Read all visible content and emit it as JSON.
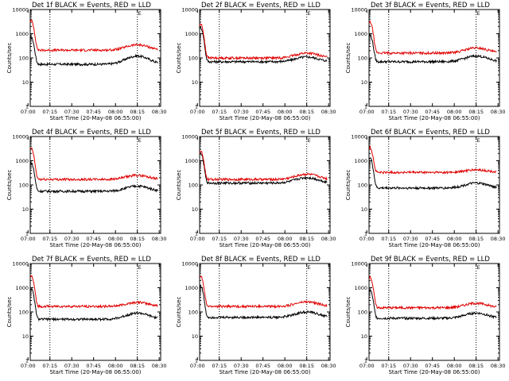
{
  "chart_data": [
    {
      "type": "line",
      "title": "Det 1f BLACK = Events, RED = LLD",
      "xlabel": "Start Time (20-May-08 06:55:00)",
      "ylabel": "Counts/sec",
      "ylim": [
        1,
        10000
      ],
      "yscale": "log",
      "x_ticks": [
        "07:00",
        "07:15",
        "07:30",
        "07:45",
        "08:00",
        "08:15",
        "08:30"
      ],
      "y_ticks": [
        "1",
        "10",
        "100",
        "1000",
        "10000"
      ],
      "marker_label": "E",
      "series": [
        {
          "name": "Events",
          "peak": 700,
          "base": 55,
          "end_bump": 120
        },
        {
          "name": "LLD",
          "peak": 3500,
          "base": 210,
          "end_bump": 350
        }
      ]
    },
    {
      "type": "line",
      "title": "Det 2f BLACK = Events, RED = LLD",
      "xlabel": "Start Time (20-May-08 06:55:00)",
      "ylabel": "Counts/sec",
      "ylim": [
        1,
        10000
      ],
      "yscale": "log",
      "x_ticks": [
        "07:00",
        "07:15",
        "07:30",
        "07:45",
        "08:00",
        "08:15",
        "08:30"
      ],
      "y_ticks": [
        "1",
        "10",
        "100",
        "1000",
        "10000"
      ],
      "marker_label": "E",
      "series": [
        {
          "name": "Events",
          "peak": 1800,
          "base": 70,
          "end_bump": 110
        },
        {
          "name": "LLD",
          "peak": 2500,
          "base": 100,
          "end_bump": 160
        }
      ]
    },
    {
      "type": "line",
      "title": "Det 3f BLACK = Events, RED = LLD",
      "xlabel": "Start Time (20-May-08 06:55:00)",
      "ylabel": "Counts/sec",
      "ylim": [
        1,
        10000
      ],
      "yscale": "log",
      "x_ticks": [
        "07:00",
        "07:15",
        "07:30",
        "07:45",
        "08:00",
        "08:15",
        "08:30"
      ],
      "y_ticks": [
        "1",
        "10",
        "100",
        "1000",
        "10000"
      ],
      "marker_label": "E",
      "series": [
        {
          "name": "Events",
          "peak": 900,
          "base": 70,
          "end_bump": 120
        },
        {
          "name": "LLD",
          "peak": 3000,
          "base": 160,
          "end_bump": 260
        }
      ]
    },
    {
      "type": "line",
      "title": "Det 4f BLACK = Events, RED = LLD",
      "xlabel": "Start Time (20-May-08 06:55:00)",
      "ylabel": "Counts/sec",
      "ylim": [
        1,
        10000
      ],
      "yscale": "log",
      "x_ticks": [
        "07:00",
        "07:15",
        "07:30",
        "07:45",
        "08:00",
        "08:15",
        "08:30"
      ],
      "y_ticks": [
        "1",
        "10",
        "100",
        "1000",
        "10000"
      ],
      "marker_label": "E",
      "series": [
        {
          "name": "Events",
          "peak": 800,
          "base": 55,
          "end_bump": 90
        },
        {
          "name": "LLD",
          "peak": 3200,
          "base": 170,
          "end_bump": 250
        }
      ]
    },
    {
      "type": "line",
      "title": "Det 5f BLACK = Events, RED = LLD",
      "xlabel": "Start Time (20-May-08 06:55:00)",
      "ylabel": "Counts/sec",
      "ylim": [
        1,
        10000
      ],
      "yscale": "log",
      "x_ticks": [
        "07:00",
        "07:15",
        "07:30",
        "07:45",
        "08:00",
        "08:15",
        "08:30"
      ],
      "y_ticks": [
        "1",
        "10",
        "100",
        "1000",
        "10000"
      ],
      "marker_label": "E",
      "series": [
        {
          "name": "Events",
          "peak": 2000,
          "base": 120,
          "end_bump": 200
        },
        {
          "name": "LLD",
          "peak": 2500,
          "base": 170,
          "end_bump": 280
        }
      ]
    },
    {
      "type": "line",
      "title": "Det 6f BLACK = Events, RED = LLD",
      "xlabel": "Start Time (20-May-08 06:55:00)",
      "ylabel": "Counts/sec",
      "ylim": [
        1,
        10000
      ],
      "yscale": "log",
      "x_ticks": [
        "07:00",
        "07:15",
        "07:30",
        "07:45",
        "08:00",
        "08:15",
        "08:30"
      ],
      "y_ticks": [
        "1",
        "10",
        "100",
        "1000",
        "10000"
      ],
      "marker_label": "E",
      "series": [
        {
          "name": "Events",
          "peak": 1300,
          "base": 75,
          "end_bump": 120
        },
        {
          "name": "LLD",
          "peak": 3500,
          "base": 330,
          "end_bump": 420
        }
      ]
    },
    {
      "type": "line",
      "title": "Det 7f BLACK = Events, RED = LLD",
      "xlabel": "Start Time (20-May-08 06:55:00)",
      "ylabel": "Counts/sec",
      "ylim": [
        1,
        10000
      ],
      "yscale": "log",
      "x_ticks": [
        "07:00",
        "07:15",
        "07:30",
        "07:45",
        "08:00",
        "08:15",
        "08:30"
      ],
      "y_ticks": [
        "1",
        "10",
        "100",
        "1000",
        "10000"
      ],
      "marker_label": "E",
      "series": [
        {
          "name": "Events",
          "peak": 900,
          "base": 50,
          "end_bump": 90
        },
        {
          "name": "LLD",
          "peak": 3000,
          "base": 170,
          "end_bump": 250
        }
      ]
    },
    {
      "type": "line",
      "title": "Det 8f BLACK = Events, RED = LLD",
      "xlabel": "Start Time (20-May-08 06:55:00)",
      "ylabel": "Counts/sec",
      "ylim": [
        1,
        10000
      ],
      "yscale": "log",
      "x_ticks": [
        "07:00",
        "07:15",
        "07:30",
        "07:45",
        "08:00",
        "08:15",
        "08:30"
      ],
      "y_ticks": [
        "1",
        "10",
        "100",
        "1000",
        "10000"
      ],
      "marker_label": "E",
      "series": [
        {
          "name": "Events",
          "peak": 1200,
          "base": 60,
          "end_bump": 100
        },
        {
          "name": "LLD",
          "peak": 3000,
          "base": 170,
          "end_bump": 260
        }
      ]
    },
    {
      "type": "line",
      "title": "Det 9f BLACK = Events, RED = LLD",
      "xlabel": "Start Time (20-May-08 06:55:00)",
      "ylabel": "Counts/sec",
      "ylim": [
        1,
        10000
      ],
      "yscale": "log",
      "x_ticks": [
        "07:00",
        "07:15",
        "07:30",
        "07:45",
        "08:00",
        "08:15",
        "08:30"
      ],
      "y_ticks": [
        "1",
        "10",
        "100",
        "1000",
        "10000"
      ],
      "marker_label": "E",
      "series": [
        {
          "name": "Events",
          "peak": 800,
          "base": 55,
          "end_bump": 90
        },
        {
          "name": "LLD",
          "peak": 2800,
          "base": 150,
          "end_bump": 230
        }
      ]
    }
  ],
  "colors": {
    "events": "#000000",
    "lld": "#e00000",
    "background": "#ffffff"
  }
}
